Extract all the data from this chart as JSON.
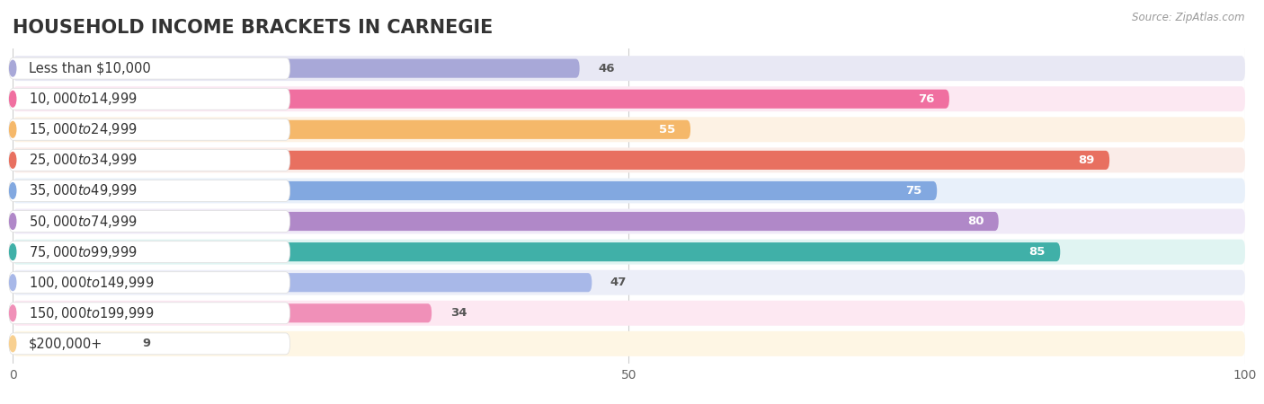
{
  "title": "HOUSEHOLD INCOME BRACKETS IN CARNEGIE",
  "source": "Source: ZipAtlas.com",
  "categories": [
    "Less than $10,000",
    "$10,000 to $14,999",
    "$15,000 to $24,999",
    "$25,000 to $34,999",
    "$35,000 to $49,999",
    "$50,000 to $74,999",
    "$75,000 to $99,999",
    "$100,000 to $149,999",
    "$150,000 to $199,999",
    "$200,000+"
  ],
  "values": [
    46,
    76,
    55,
    89,
    75,
    80,
    85,
    47,
    34,
    9
  ],
  "bar_colors": [
    "#a8a8d8",
    "#f06fa0",
    "#f5b86a",
    "#e87060",
    "#82a8e0",
    "#b088c8",
    "#40b0a8",
    "#a8b8e8",
    "#f090b8",
    "#f8d090"
  ],
  "bar_bg_colors": [
    "#e8e8f4",
    "#fce8f2",
    "#fdf2e4",
    "#faece8",
    "#e8f0fa",
    "#f0eaf8",
    "#e0f4f2",
    "#eceef8",
    "#fde8f2",
    "#fef6e4"
  ],
  "xlim": [
    0,
    100
  ],
  "xticks": [
    0,
    50,
    100
  ],
  "bg_color": "#ffffff",
  "plot_bg": "#f8f8f8",
  "title_fontsize": 15,
  "label_fontsize": 10.5,
  "value_fontsize": 9.5
}
